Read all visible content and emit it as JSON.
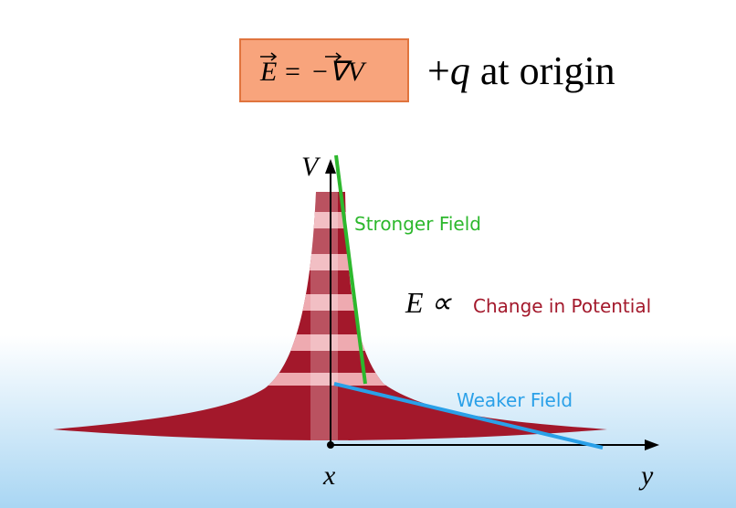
{
  "equation": {
    "lhs": "E",
    "equals": "=",
    "rhs": "−∇V"
  },
  "charge_label": {
    "sign": "+",
    "symbol": "q",
    "text": "at origin"
  },
  "axes": {
    "vertical": "V",
    "x": "x",
    "y": "y"
  },
  "lines": {
    "stronger": "Stronger Field",
    "weaker": "Weaker Field"
  },
  "relation": {
    "symbol": "E ∝",
    "text": "Change in Potential"
  }
}
